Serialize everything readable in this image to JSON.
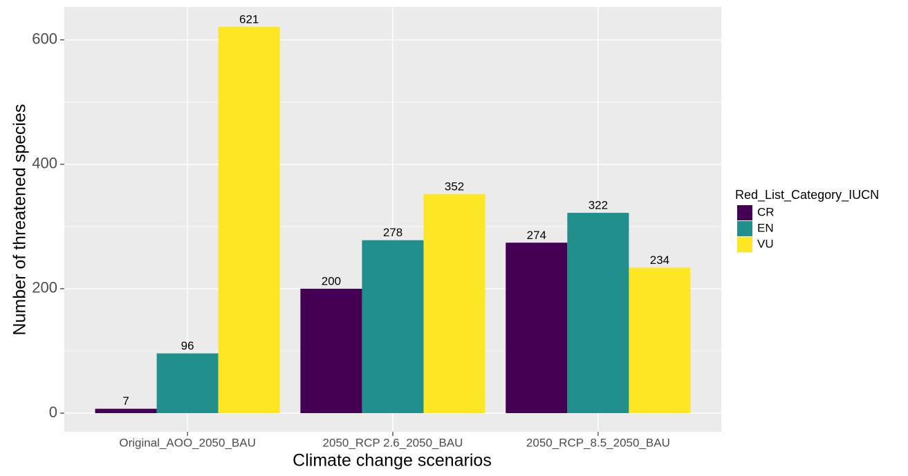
{
  "chart_data": {
    "type": "bar",
    "x_label": "Climate change scenarios",
    "y_label": "Number of threatened species",
    "categories": [
      "Original_AOO_2050_BAU",
      "2050_RCP 2.6_2050_BAU",
      "2050_RCP_8.5_2050_BAU"
    ],
    "series": [
      {
        "name": "CR",
        "color": "#440154",
        "values": [
          7,
          200,
          274
        ]
      },
      {
        "name": "EN",
        "color": "#21908C",
        "values": [
          96,
          278,
          322
        ]
      },
      {
        "name": "VU",
        "color": "#FDE725",
        "values": [
          621,
          352,
          234
        ]
      }
    ],
    "legend_title": "Red_List_Category_IUCN",
    "legend_position": "right",
    "ylim": [
      -30,
      653
    ],
    "yticks": [
      0,
      200,
      400,
      600
    ],
    "y_minor_ticks": [
      100,
      300,
      500
    ],
    "grid": true
  }
}
